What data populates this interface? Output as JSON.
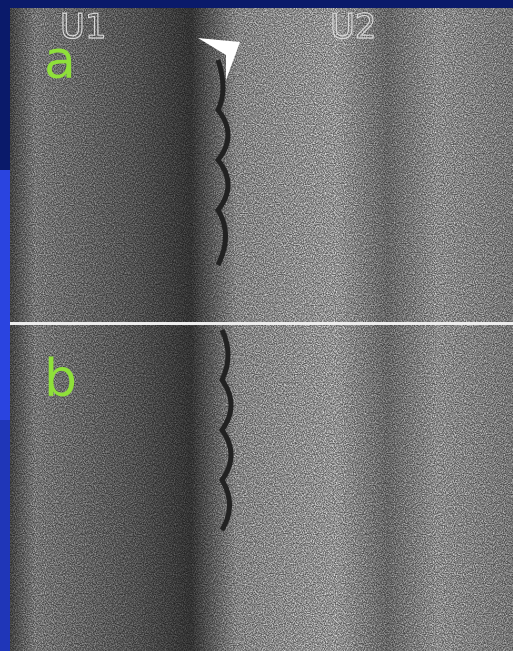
{
  "markers": [
    "U1",
    "U2"
  ],
  "panels": [
    {
      "label": "a"
    },
    {
      "label": "b"
    }
  ]
}
